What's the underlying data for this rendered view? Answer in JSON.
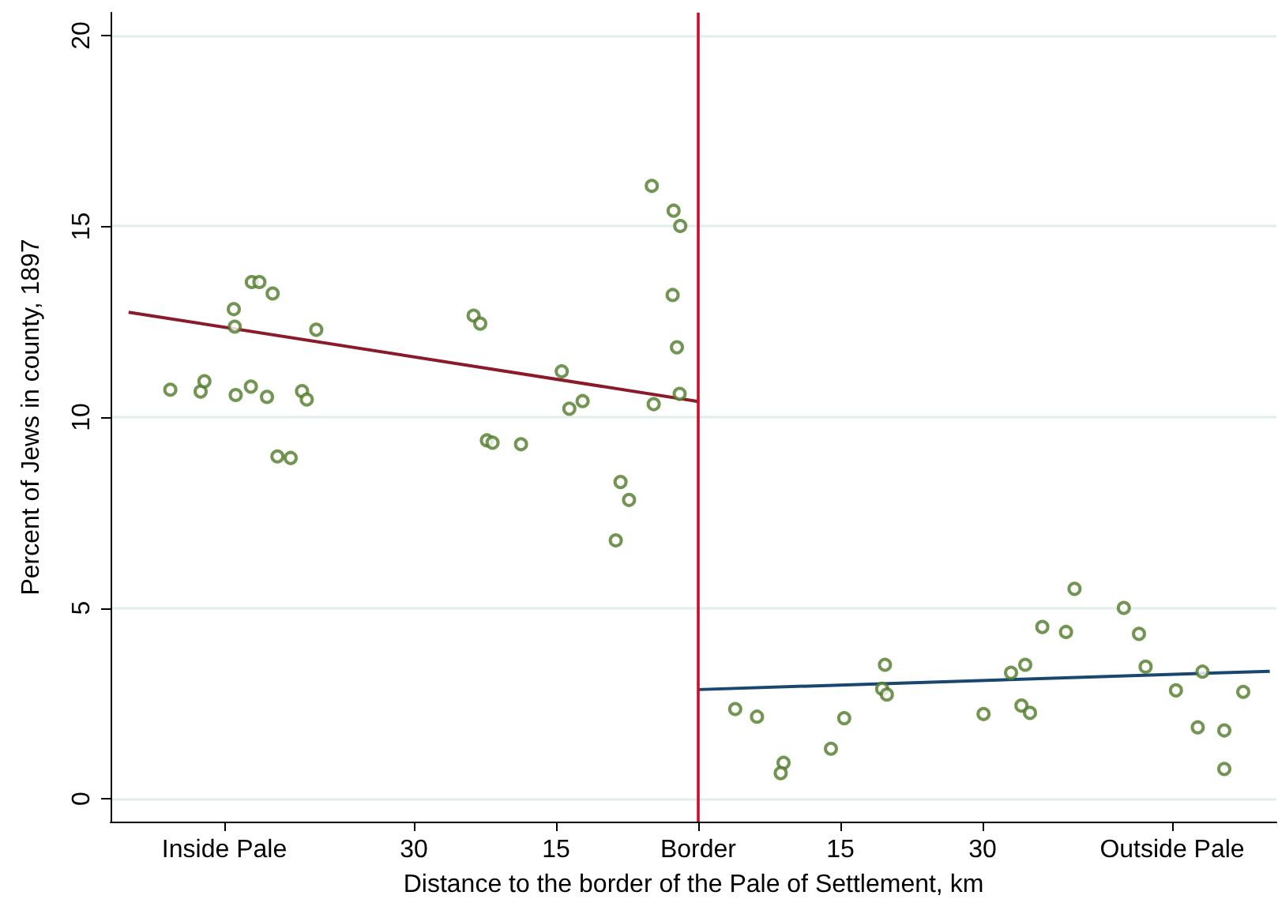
{
  "chart_data": {
    "type": "scatter",
    "xlabel": "Distance to the border of the Pale of Settlement, km",
    "ylabel": "Percent of Jews in county, 1897",
    "xlim": [
      -62,
      61
    ],
    "ylim": [
      -0.6,
      20.6
    ],
    "xticks": [
      {
        "value": -50,
        "label": "Inside Pale"
      },
      {
        "value": -30,
        "label": "30"
      },
      {
        "value": -15,
        "label": "15"
      },
      {
        "value": 0,
        "label": "Border"
      },
      {
        "value": 15,
        "label": "15"
      },
      {
        "value": 30,
        "label": "30"
      },
      {
        "value": 50,
        "label": "Outside Pale"
      }
    ],
    "yticks": [
      0,
      5,
      10,
      15,
      20
    ],
    "grid": "y",
    "marker": "circle",
    "series": [
      {
        "color": "#4f7a28",
        "x": [
          -55.7,
          -52.5,
          -52.1,
          -49.0,
          -48.9,
          -48.8,
          -47.2,
          -47.1,
          -46.3,
          -44.9,
          -45.5,
          -44.4,
          -43.0,
          -41.8,
          -41.3,
          -40.3,
          -23.7,
          -23.0,
          -22.3,
          -21.7,
          -18.7,
          -14.4,
          -13.6,
          -12.2,
          -8.2,
          -7.3,
          -8.7,
          -4.9,
          -4.7,
          -2.7,
          -2.6,
          -1.9,
          -2.25,
          -1.96,
          3.9,
          6.2,
          9.0,
          8.7,
          14.0,
          15.4,
          19.7,
          19.4,
          19.9,
          30.1,
          33.0,
          34.5,
          34.1,
          35.0,
          36.3,
          38.8,
          39.7,
          44.9,
          46.5,
          47.2,
          50.4,
          53.2,
          52.7,
          55.5,
          55.5,
          57.5
        ],
        "values": [
          10.72,
          10.67,
          10.94,
          12.83,
          12.37,
          10.58,
          10.8,
          13.54,
          13.54,
          13.24,
          10.53,
          8.97,
          8.93,
          10.68,
          10.46,
          12.29,
          12.66,
          12.45,
          9.39,
          9.33,
          9.29,
          11.2,
          10.22,
          10.42,
          8.3,
          7.83,
          6.77,
          16.06,
          10.34,
          13.2,
          15.41,
          15.01,
          11.83,
          10.61,
          2.35,
          2.15,
          0.94,
          0.67,
          1.31,
          2.11,
          3.51,
          2.88,
          2.73,
          2.22,
          3.3,
          3.51,
          2.44,
          2.25,
          4.5,
          4.37,
          5.5,
          5.0,
          4.32,
          3.46,
          2.84,
          3.33,
          1.87,
          1.79,
          0.78,
          2.8
        ]
      },
      {
        "type": "line",
        "color": "#8b1a2b",
        "marker": "none",
        "x": [
          -60.1,
          0
        ],
        "values": [
          12.75,
          10.41
        ]
      },
      {
        "type": "line",
        "color": "#1a476f",
        "marker": "none",
        "x": [
          0,
          60.3
        ],
        "values": [
          2.86,
          3.34
        ]
      }
    ],
    "ref_lines": [
      {
        "axis": "x",
        "value": 0,
        "color": "#c8102e"
      }
    ]
  }
}
